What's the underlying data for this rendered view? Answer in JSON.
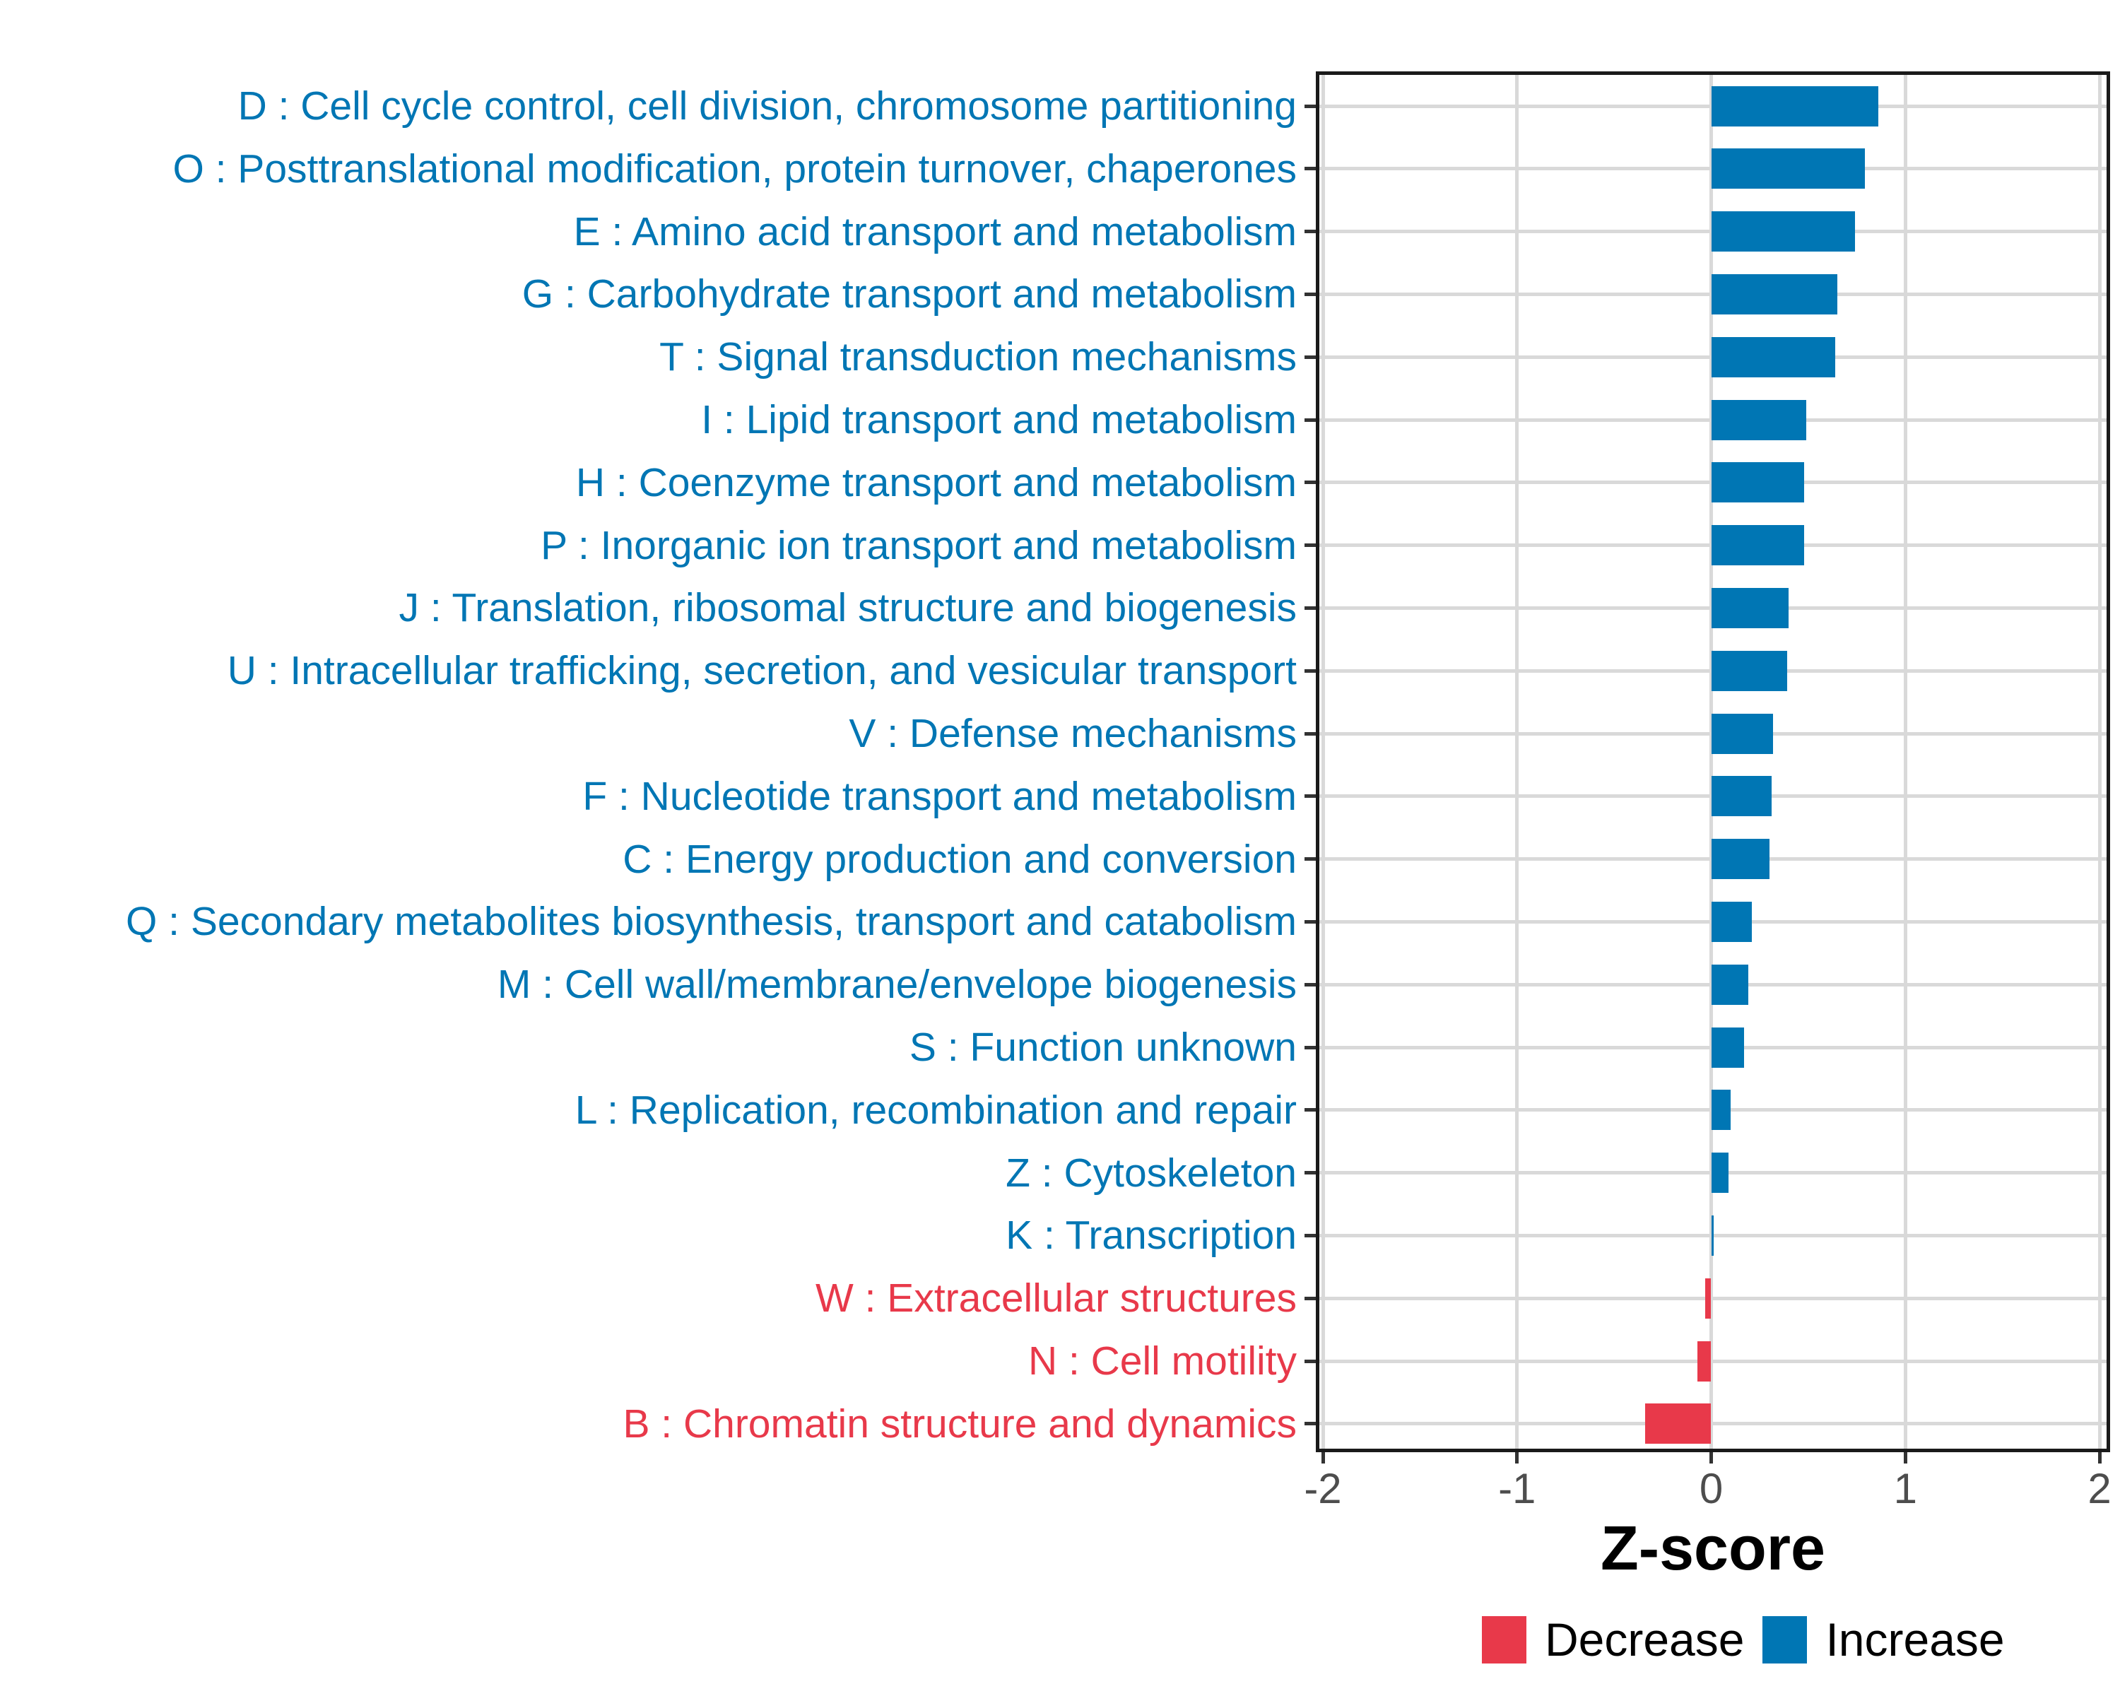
{
  "figure": {
    "xlabel": "Z-score",
    "legend": {
      "decrease_label": "Decrease",
      "increase_label": "Increase"
    },
    "colors": {
      "increase": "#0076B4",
      "decrease": "#E8394A",
      "grid": "#d9d9d9",
      "axis_text": "#4d4d4d",
      "panel_border": "#1a1a1a"
    }
  },
  "chart_data": {
    "type": "bar",
    "orientation": "horizontal",
    "xlabel": "Z-score",
    "xlim": [
      -2,
      2
    ],
    "x_ticks": [
      "-2",
      "-1",
      "0",
      "1",
      "2"
    ],
    "x_tick_values": [
      -2,
      -1,
      0,
      1,
      2
    ],
    "grid": true,
    "legend_position": "bottom",
    "legend_entries": [
      {
        "name": "Decrease",
        "color": "#E8394A"
      },
      {
        "name": "Increase",
        "color": "#0076B4"
      }
    ],
    "categories": [
      {
        "label": "D : Cell cycle control, cell division, chromosome partitioning",
        "value": 0.86,
        "group": "Increase"
      },
      {
        "label": "O : Posttranslational modification, protein turnover, chaperones",
        "value": 0.79,
        "group": "Increase"
      },
      {
        "label": "E : Amino acid transport and metabolism",
        "value": 0.74,
        "group": "Increase"
      },
      {
        "label": "G : Carbohydrate transport and metabolism",
        "value": 0.65,
        "group": "Increase"
      },
      {
        "label": "T : Signal transduction mechanisms",
        "value": 0.64,
        "group": "Increase"
      },
      {
        "label": "I : Lipid transport and metabolism",
        "value": 0.49,
        "group": "Increase"
      },
      {
        "label": "H : Coenzyme transport and metabolism",
        "value": 0.48,
        "group": "Increase"
      },
      {
        "label": "P : Inorganic ion transport and metabolism",
        "value": 0.48,
        "group": "Increase"
      },
      {
        "label": "J : Translation, ribosomal structure and biogenesis",
        "value": 0.4,
        "group": "Increase"
      },
      {
        "label": "U : Intracellular trafficking, secretion, and vesicular transport",
        "value": 0.39,
        "group": "Increase"
      },
      {
        "label": "V : Defense mechanisms",
        "value": 0.32,
        "group": "Increase"
      },
      {
        "label": "F : Nucleotide transport and metabolism",
        "value": 0.31,
        "group": "Increase"
      },
      {
        "label": "C : Energy production and conversion",
        "value": 0.3,
        "group": "Increase"
      },
      {
        "label": "Q : Secondary metabolites biosynthesis, transport and catabolism",
        "value": 0.21,
        "group": "Increase"
      },
      {
        "label": "M : Cell wall/membrane/envelope biogenesis",
        "value": 0.19,
        "group": "Increase"
      },
      {
        "label": "S : Function unknown",
        "value": 0.17,
        "group": "Increase"
      },
      {
        "label": "L : Replication, recombination and repair",
        "value": 0.1,
        "group": "Increase"
      },
      {
        "label": "Z : Cytoskeleton",
        "value": 0.09,
        "group": "Increase"
      },
      {
        "label": "K : Transcription",
        "value": 0.01,
        "group": "Increase"
      },
      {
        "label": "W : Extracellular structures",
        "value": -0.03,
        "group": "Decrease"
      },
      {
        "label": "N : Cell motility",
        "value": -0.07,
        "group": "Decrease"
      },
      {
        "label": "B : Chromatin structure and dynamics",
        "value": -0.34,
        "group": "Decrease"
      }
    ]
  }
}
